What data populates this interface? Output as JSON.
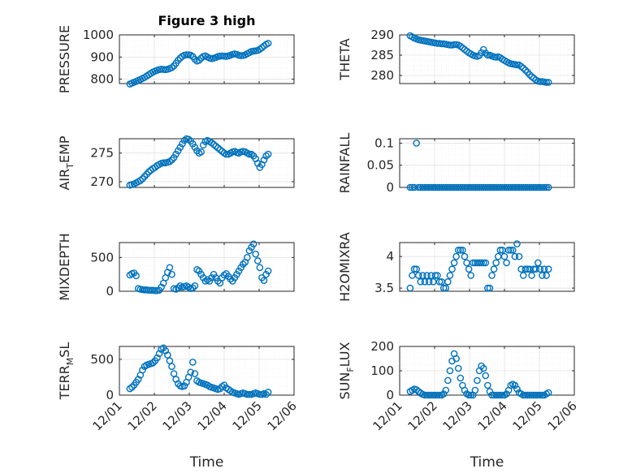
{
  "chart_data": [
    {
      "type": "scatter",
      "title": "Figure 3 high",
      "ylabel": "PRESSURE",
      "ylim": [
        780,
        1000
      ],
      "yticks": [
        "800",
        "900",
        "1000"
      ],
      "grid": "on",
      "marker_color": "#0072BD",
      "x": [
        1.3,
        1.36,
        1.42,
        1.48,
        1.54,
        1.6,
        1.66,
        1.72,
        1.78,
        1.84,
        1.9,
        1.96,
        2.02,
        2.08,
        2.14,
        2.2,
        2.26,
        2.32,
        2.38,
        2.44,
        2.5,
        2.56,
        2.62,
        2.68,
        2.74,
        2.8,
        2.86,
        2.92,
        2.98,
        3.04,
        3.1,
        3.16,
        3.22,
        3.28,
        3.34,
        3.4,
        3.46,
        3.52,
        3.58,
        3.64,
        3.7,
        3.76,
        3.82,
        3.88,
        3.94,
        4.0,
        4.06,
        4.12,
        4.18,
        4.24,
        4.3,
        4.36,
        4.42,
        4.48,
        4.54,
        4.6,
        4.66,
        4.72,
        4.78,
        4.84,
        4.9,
        4.96,
        5.02,
        5.08,
        5.14,
        5.2,
        5.26
      ],
      "y": [
        778,
        782,
        786,
        790,
        794,
        798,
        803,
        808,
        814,
        820,
        826,
        832,
        836,
        840,
        843,
        845,
        844,
        843,
        845,
        848,
        852,
        860,
        872,
        885,
        895,
        903,
        908,
        910,
        910,
        908,
        902,
        890,
        882,
        885,
        895,
        902,
        905,
        900,
        895,
        893,
        895,
        898,
        902,
        904,
        905,
        904,
        903,
        905,
        908,
        912,
        914,
        912,
        908,
        906,
        907,
        910,
        915,
        920,
        925,
        927,
        928,
        930,
        935,
        942,
        950,
        957,
        962
      ]
    },
    {
      "type": "scatter",
      "ylabel": "THETA",
      "ylim": [
        278,
        290
      ],
      "yticks": [
        "280",
        "285",
        "290"
      ],
      "grid": "on",
      "marker_color": "#0072BD",
      "x": [
        1.3,
        1.36,
        1.42,
        1.48,
        1.54,
        1.6,
        1.66,
        1.72,
        1.78,
        1.84,
        1.9,
        1.96,
        2.02,
        2.08,
        2.14,
        2.2,
        2.26,
        2.32,
        2.38,
        2.44,
        2.5,
        2.56,
        2.62,
        2.68,
        2.74,
        2.8,
        2.86,
        2.92,
        2.98,
        3.04,
        3.1,
        3.16,
        3.22,
        3.28,
        3.34,
        3.4,
        3.46,
        3.52,
        3.58,
        3.64,
        3.7,
        3.76,
        3.82,
        3.88,
        3.94,
        4.0,
        4.06,
        4.12,
        4.18,
        4.24,
        4.3,
        4.36,
        4.42,
        4.48,
        4.54,
        4.6,
        4.66,
        4.72,
        4.78,
        4.84,
        4.9,
        4.96,
        5.02,
        5.08,
        5.14,
        5.2,
        5.26
      ],
      "y": [
        289.8,
        289.5,
        289.2,
        289.0,
        288.8,
        288.7,
        288.6,
        288.5,
        288.4,
        288.3,
        288.2,
        288.1,
        288.0,
        287.9,
        287.9,
        287.8,
        287.8,
        287.7,
        287.6,
        287.5,
        287.5,
        287.6,
        287.6,
        287.5,
        287.2,
        286.8,
        286.4,
        286.0,
        285.6,
        285.3,
        285.0,
        284.8,
        284.7,
        284.9,
        285.6,
        286.4,
        285.5,
        285.0,
        285.0,
        284.8,
        284.6,
        284.5,
        284.6,
        284.4,
        284.0,
        283.7,
        283.4,
        283.1,
        282.9,
        282.8,
        282.7,
        282.6,
        282.6,
        282.2,
        281.8,
        281.3,
        280.8,
        280.2,
        279.7,
        279.3,
        278.9,
        278.6,
        278.5,
        278.5,
        278.4,
        278.3,
        278.3
      ]
    },
    {
      "type": "scatter",
      "ylabel": "AIR_TEMP",
      "ylim": [
        269,
        277.5
      ],
      "yticks": [
        "270",
        "275"
      ],
      "grid": "on",
      "marker_color": "#0072BD",
      "x": [
        1.3,
        1.36,
        1.42,
        1.48,
        1.54,
        1.6,
        1.66,
        1.72,
        1.78,
        1.84,
        1.9,
        1.96,
        2.02,
        2.08,
        2.14,
        2.2,
        2.26,
        2.32,
        2.38,
        2.44,
        2.5,
        2.56,
        2.62,
        2.68,
        2.74,
        2.8,
        2.86,
        2.92,
        2.98,
        3.04,
        3.1,
        3.16,
        3.22,
        3.28,
        3.34,
        3.4,
        3.46,
        3.52,
        3.58,
        3.64,
        3.7,
        3.76,
        3.82,
        3.88,
        3.94,
        4.0,
        4.06,
        4.12,
        4.18,
        4.24,
        4.3,
        4.36,
        4.42,
        4.48,
        4.54,
        4.6,
        4.66,
        4.72,
        4.78,
        4.84,
        4.9,
        4.96,
        5.02,
        5.08,
        5.14,
        5.2,
        5.26
      ],
      "y": [
        269.4,
        269.5,
        269.6,
        269.8,
        270.0,
        270.2,
        270.5,
        270.9,
        271.3,
        271.7,
        272.0,
        272.3,
        272.5,
        272.8,
        273.0,
        273.2,
        273.3,
        273.3,
        273.4,
        273.5,
        273.8,
        274.2,
        274.8,
        275.4,
        276.0,
        276.6,
        277.2,
        277.5,
        277.4,
        277.1,
        276.6,
        276.0,
        275.4,
        275.0,
        275.2,
        276.4,
        277.0,
        277.2,
        277.0,
        276.8,
        276.5,
        276.2,
        275.9,
        275.6,
        275.3,
        275.0,
        274.8,
        274.8,
        275.0,
        275.2,
        275.3,
        275.1,
        275.0,
        275.2,
        275.3,
        275.2,
        275.0,
        274.8,
        274.8,
        274.5,
        274.0,
        273.2,
        272.5,
        273.0,
        273.8,
        274.5,
        274.8
      ]
    },
    {
      "type": "scatter",
      "ylabel": "RAINFALL",
      "ylim": [
        0,
        0.11
      ],
      "yticks": [
        "0",
        "0.05",
        "0.1"
      ],
      "grid": "on",
      "marker_color": "#0072BD",
      "x": [
        1.3,
        1.36,
        1.42,
        1.48,
        1.54,
        1.6,
        1.66,
        1.72,
        1.78,
        1.84,
        1.9,
        1.96,
        2.02,
        2.08,
        2.14,
        2.2,
        2.26,
        2.32,
        2.38,
        2.44,
        2.5,
        2.56,
        2.62,
        2.68,
        2.74,
        2.8,
        2.86,
        2.92,
        2.98,
        3.04,
        3.1,
        3.16,
        3.22,
        3.28,
        3.34,
        3.4,
        3.46,
        3.52,
        3.58,
        3.64,
        3.7,
        3.76,
        3.82,
        3.88,
        3.94,
        4.0,
        4.06,
        4.12,
        4.18,
        4.24,
        4.3,
        4.36,
        4.42,
        4.48,
        4.54,
        4.6,
        4.66,
        4.72,
        4.78,
        4.84,
        4.9,
        4.96,
        5.02,
        5.08,
        5.14,
        5.2,
        5.26
      ],
      "y": [
        0,
        0,
        0,
        0.1,
        0,
        0,
        0,
        0,
        0,
        0,
        0,
        0,
        0,
        0,
        0,
        0,
        0,
        0,
        0,
        0,
        0,
        0,
        0,
        0,
        0,
        0,
        0,
        0,
        0,
        0,
        0,
        0,
        0,
        0,
        0,
        0,
        0,
        0,
        0,
        0,
        0,
        0,
        0,
        0,
        0,
        0,
        0,
        0,
        0,
        0,
        0,
        0,
        0,
        0,
        0,
        0,
        0,
        0,
        0,
        0,
        0,
        0,
        0,
        0,
        0,
        0,
        0
      ]
    },
    {
      "type": "scatter",
      "ylabel": "MIXDEPTH",
      "ylim": [
        0,
        720
      ],
      "yticks": [
        "0",
        "500"
      ],
      "grid": "on",
      "marker_color": "#0072BD",
      "x": [
        1.3,
        1.36,
        1.42,
        1.48,
        1.54,
        1.6,
        1.66,
        1.72,
        1.78,
        1.84,
        1.9,
        1.96,
        2.02,
        2.08,
        2.14,
        2.2,
        2.26,
        2.32,
        2.38,
        2.44,
        2.5,
        2.56,
        2.62,
        2.68,
        2.74,
        2.8,
        2.86,
        2.92,
        2.98,
        3.04,
        3.1,
        3.16,
        3.22,
        3.28,
        3.34,
        3.4,
        3.46,
        3.52,
        3.58,
        3.64,
        3.7,
        3.76,
        3.82,
        3.88,
        3.94,
        4.0,
        4.06,
        4.12,
        4.18,
        4.24,
        4.3,
        4.36,
        4.42,
        4.48,
        4.54,
        4.6,
        4.66,
        4.72,
        4.78,
        4.84,
        4.9,
        4.96,
        5.02,
        5.08,
        5.14,
        5.2,
        5.26
      ],
      "y": [
        240,
        260,
        270,
        230,
        40,
        30,
        25,
        20,
        20,
        15,
        15,
        15,
        10,
        10,
        15,
        60,
        120,
        200,
        280,
        350,
        250,
        40,
        30,
        50,
        80,
        60,
        70,
        80,
        60,
        40,
        50,
        80,
        320,
        300,
        250,
        200,
        150,
        170,
        150,
        200,
        250,
        200,
        150,
        120,
        200,
        240,
        260,
        220,
        180,
        150,
        200,
        250,
        300,
        350,
        400,
        430,
        500,
        600,
        650,
        700,
        550,
        450,
        350,
        200,
        160,
        250,
        300
      ]
    },
    {
      "type": "scatter",
      "ylabel": "H2OMIXRA",
      "ylim": [
        3.45,
        4.22
      ],
      "yticks": [
        "3.5",
        "4"
      ],
      "grid": "on",
      "marker_color": "#0072BD",
      "x": [
        1.3,
        1.36,
        1.42,
        1.48,
        1.54,
        1.6,
        1.66,
        1.72,
        1.78,
        1.84,
        1.9,
        1.96,
        2.02,
        2.08,
        2.14,
        2.2,
        2.26,
        2.32,
        2.38,
        2.44,
        2.5,
        2.56,
        2.62,
        2.68,
        2.74,
        2.8,
        2.86,
        2.92,
        2.98,
        3.04,
        3.1,
        3.16,
        3.22,
        3.28,
        3.34,
        3.4,
        3.46,
        3.52,
        3.58,
        3.64,
        3.7,
        3.76,
        3.82,
        3.88,
        3.94,
        4.0,
        4.06,
        4.12,
        4.18,
        4.24,
        4.3,
        4.36,
        4.42,
        4.48,
        4.54,
        4.6,
        4.66,
        4.72,
        4.78,
        4.84,
        4.9,
        4.96,
        5.02,
        5.08,
        5.14,
        5.2,
        5.26
      ],
      "y": [
        3.5,
        3.7,
        3.8,
        3.8,
        3.7,
        3.6,
        3.7,
        3.6,
        3.7,
        3.6,
        3.7,
        3.6,
        3.7,
        3.7,
        3.6,
        3.6,
        3.5,
        3.5,
        3.6,
        3.7,
        3.8,
        3.9,
        4.0,
        4.1,
        4.1,
        4.1,
        4.0,
        3.9,
        3.8,
        3.7,
        3.9,
        3.9,
        3.9,
        3.9,
        3.9,
        3.9,
        3.9,
        3.5,
        3.5,
        3.7,
        3.8,
        3.9,
        4.0,
        4.1,
        4.1,
        4.0,
        3.9,
        4.1,
        4.1,
        4.1,
        4.0,
        4.2,
        4.0,
        3.8,
        3.7,
        3.8,
        3.8,
        3.8,
        3.7,
        3.8,
        3.8,
        3.9,
        3.8,
        3.7,
        3.8,
        3.7,
        3.8
      ]
    },
    {
      "type": "scatter",
      "ylabel": "TERR_MSL",
      "ylim": [
        0,
        680
      ],
      "yticks": [
        "0",
        "500"
      ],
      "grid": "on",
      "marker_color": "#0072BD",
      "x": [
        1.3,
        1.36,
        1.42,
        1.48,
        1.54,
        1.6,
        1.66,
        1.72,
        1.78,
        1.84,
        1.9,
        1.96,
        2.02,
        2.08,
        2.14,
        2.2,
        2.26,
        2.32,
        2.38,
        2.44,
        2.5,
        2.56,
        2.62,
        2.68,
        2.74,
        2.8,
        2.86,
        2.92,
        2.98,
        3.04,
        3.1,
        3.16,
        3.22,
        3.28,
        3.34,
        3.4,
        3.46,
        3.52,
        3.58,
        3.64,
        3.7,
        3.76,
        3.82,
        3.88,
        3.94,
        4.0,
        4.06,
        4.12,
        4.18,
        4.24,
        4.3,
        4.36,
        4.42,
        4.48,
        4.54,
        4.6,
        4.66,
        4.72,
        4.78,
        4.84,
        4.9,
        4.96,
        5.02,
        5.08,
        5.14,
        5.2,
        5.26
      ],
      "y": [
        90,
        110,
        140,
        180,
        220,
        280,
        350,
        400,
        420,
        430,
        440,
        450,
        480,
        520,
        580,
        640,
        660,
        620,
        560,
        480,
        400,
        300,
        220,
        160,
        130,
        120,
        130,
        180,
        250,
        320,
        460,
        300,
        200,
        180,
        170,
        160,
        150,
        140,
        120,
        110,
        100,
        90,
        80,
        90,
        120,
        140,
        100,
        80,
        60,
        40,
        30,
        20,
        10,
        20,
        30,
        20,
        10,
        10,
        10,
        20,
        30,
        20,
        10,
        10,
        20,
        10,
        40
      ]
    },
    {
      "type": "scatter",
      "ylabel": "SUN_FLUX",
      "ylim": [
        0,
        200
      ],
      "yticks": [
        "0",
        "100",
        "200"
      ],
      "grid": "on",
      "marker_color": "#0072BD",
      "x": [
        1.3,
        1.36,
        1.42,
        1.48,
        1.54,
        1.6,
        1.66,
        1.72,
        1.78,
        1.84,
        1.9,
        1.96,
        2.02,
        2.08,
        2.14,
        2.2,
        2.26,
        2.32,
        2.38,
        2.44,
        2.5,
        2.56,
        2.62,
        2.68,
        2.74,
        2.8,
        2.86,
        2.92,
        2.98,
        3.04,
        3.1,
        3.16,
        3.22,
        3.28,
        3.34,
        3.4,
        3.46,
        3.52,
        3.58,
        3.64,
        3.7,
        3.76,
        3.82,
        3.88,
        3.94,
        4.0,
        4.06,
        4.12,
        4.18,
        4.24,
        4.3,
        4.36,
        4.42,
        4.48,
        4.54,
        4.6,
        4.66,
        4.72,
        4.78,
        4.84,
        4.9,
        4.96,
        5.02,
        5.08,
        5.14,
        5.2,
        5.26
      ],
      "y": [
        15,
        20,
        25,
        22,
        15,
        8,
        3,
        0,
        0,
        0,
        0,
        0,
        0,
        0,
        0,
        0,
        5,
        20,
        60,
        100,
        140,
        170,
        150,
        110,
        70,
        40,
        20,
        5,
        0,
        0,
        0,
        20,
        60,
        100,
        120,
        110,
        80,
        40,
        15,
        0,
        0,
        0,
        0,
        0,
        0,
        0,
        5,
        20,
        40,
        45,
        40,
        25,
        10,
        5,
        0,
        0,
        0,
        0,
        0,
        0,
        0,
        0,
        0,
        0,
        0,
        5,
        10
      ]
    }
  ],
  "axes": {
    "xlim": [
      1,
      6
    ],
    "xticks": [
      "12/01",
      "12/02",
      "12/03",
      "12/04",
      "12/05",
      "12/06"
    ],
    "xlabel": "Time"
  }
}
